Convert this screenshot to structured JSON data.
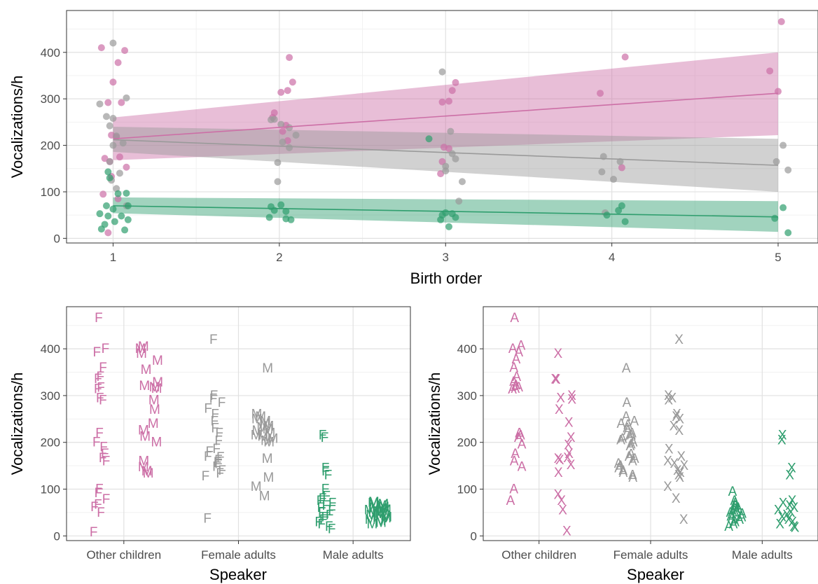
{
  "colors": {
    "other_children": "#cc6fa6",
    "female_adults": "#9a9a9a",
    "male_adults": "#2f9e6e",
    "panel_bg": "#ffffff",
    "grid_major": "#e1e1e1",
    "grid_minor": "#f1f1f1",
    "border": "#333333"
  },
  "chart_data": [
    {
      "type": "scatter",
      "panel": "top",
      "xlabel": "Birth order",
      "ylabel": "Vocalizations/h",
      "xlim": [
        0.7,
        5.2
      ],
      "ylim": [
        -10,
        490
      ],
      "xticks": [
        "1",
        "2",
        "3",
        "4",
        "5"
      ],
      "yticks": [
        "0",
        "100",
        "200",
        "300",
        "400"
      ],
      "grid": true,
      "series": [
        {
          "group": "other_children",
          "points": [
            [
              0.93,
              410
            ],
            [
              1.0,
              336
            ],
            [
              1.03,
              378
            ],
            [
              1.07,
              404
            ],
            [
              0.97,
              292
            ],
            [
              1.05,
              292
            ],
            [
              0.99,
              222
            ],
            [
              1.02,
              218
            ],
            [
              1.04,
              175
            ],
            [
              0.95,
              172
            ],
            [
              0.98,
              165
            ],
            [
              1.08,
              153
            ],
            [
              0.99,
              133
            ],
            [
              0.94,
              95
            ],
            [
              1.03,
              85
            ],
            [
              0.97,
              12
            ],
            [
              1.96,
              260
            ],
            [
              1.97,
              270
            ],
            [
              2.01,
              314
            ],
            [
              2.04,
              243
            ],
            [
              2.06,
              389
            ],
            [
              2.08,
              336
            ],
            [
              2.05,
              318
            ],
            [
              2.02,
              230
            ],
            [
              2.05,
              210
            ],
            [
              2.98,
              293
            ],
            [
              3.02,
              295
            ],
            [
              3.04,
              318
            ],
            [
              3.06,
              335
            ],
            [
              2.99,
              196
            ],
            [
              2.98,
              165
            ],
            [
              3.02,
              193
            ],
            [
              2.97,
              139
            ],
            [
              3.93,
              312
            ],
            [
              4.08,
              390
            ],
            [
              4.06,
              152
            ],
            [
              4.95,
              360
            ],
            [
              5.0,
              316
            ],
            [
              5.02,
              466
            ]
          ],
          "fit": {
            "x": [
              1,
              5
            ],
            "y": [
              214,
              312
            ],
            "ci_lower": [
              168,
              222
            ],
            "ci_upper": [
              260,
              400
            ]
          }
        },
        {
          "group": "female_adults",
          "points": [
            [
              1.0,
              420
            ],
            [
              1.08,
              302
            ],
            [
              0.92,
              289
            ],
            [
              0.96,
              262
            ],
            [
              1.0,
              258
            ],
            [
              0.98,
              242
            ],
            [
              1.02,
              220
            ],
            [
              1.06,
              205
            ],
            [
              1.0,
              200
            ],
            [
              0.98,
              165
            ],
            [
              1.04,
              140
            ],
            [
              0.99,
              125
            ],
            [
              1.02,
              107
            ],
            [
              1.08,
              70
            ],
            [
              1.97,
              256
            ],
            [
              1.95,
              255
            ],
            [
              2.01,
              245
            ],
            [
              2.06,
              238
            ],
            [
              2.1,
              222
            ],
            [
              2.02,
              207
            ],
            [
              2.06,
              195
            ],
            [
              1.99,
              163
            ],
            [
              1.99,
              122
            ],
            [
              2.98,
              358
            ],
            [
              3.03,
              230
            ],
            [
              3.04,
              182
            ],
            [
              3.06,
              171
            ],
            [
              3.0,
              155
            ],
            [
              3.0,
              145
            ],
            [
              3.1,
              122
            ],
            [
              3.08,
              80
            ],
            [
              3.95,
              176
            ],
            [
              4.05,
              165
            ],
            [
              3.94,
              143
            ],
            [
              4.01,
              127
            ],
            [
              3.96,
              55
            ],
            [
              5.03,
              200
            ],
            [
              5.06,
              147
            ],
            [
              4.99,
              165
            ]
          ],
          "fit": {
            "x": [
              1,
              5
            ],
            "y": [
              212,
              157
            ],
            "ci_lower": [
              186,
              100
            ],
            "ci_upper": [
              240,
              214
            ]
          }
        },
        {
          "group": "male_adults",
          "points": [
            [
              0.97,
              143
            ],
            [
              0.98,
              130
            ],
            [
              1.03,
              96
            ],
            [
              1.08,
              97
            ],
            [
              1.09,
              70
            ],
            [
              1.0,
              63
            ],
            [
              0.96,
              70
            ],
            [
              0.92,
              53
            ],
            [
              0.97,
              48
            ],
            [
              1.05,
              48
            ],
            [
              1.09,
              40
            ],
            [
              1.01,
              36
            ],
            [
              0.95,
              30
            ],
            [
              0.93,
              20
            ],
            [
              1.07,
              18
            ],
            [
              1.95,
              68
            ],
            [
              1.97,
              60
            ],
            [
              2.01,
              72
            ],
            [
              2.04,
              58
            ],
            [
              1.94,
              45
            ],
            [
              2.04,
              42
            ],
            [
              2.07,
              40
            ],
            [
              2.9,
              214
            ],
            [
              3.0,
              55
            ],
            [
              3.04,
              53
            ],
            [
              2.98,
              50
            ],
            [
              3.06,
              45
            ],
            [
              2.97,
              40
            ],
            [
              3.02,
              25
            ],
            [
              3.97,
              50
            ],
            [
              4.04,
              60
            ],
            [
              4.06,
              70
            ],
            [
              4.08,
              36
            ],
            [
              5.03,
              66
            ],
            [
              4.98,
              43
            ],
            [
              5.06,
              12
            ]
          ],
          "fit": {
            "x": [
              1,
              5
            ],
            "y": [
              70,
              46
            ],
            "ci_lower": [
              54,
              14
            ],
            "ci_upper": [
              88,
              80
            ]
          }
        }
      ]
    },
    {
      "type": "scatter",
      "panel": "bottom-left",
      "xlabel": "Speaker",
      "ylabel": "Vocalizations/h",
      "categories": [
        "Other children",
        "Female adults",
        "Male adults"
      ],
      "yticks": [
        "0",
        "100",
        "200",
        "300",
        "400"
      ],
      "ylim": [
        -10,
        490
      ],
      "grid": true,
      "marker_labels": [
        "F",
        "M"
      ],
      "series": [
        {
          "category": "Other children",
          "label": "F",
          "group": "other_children",
          "values": [
            466,
            400,
            393,
            360,
            340,
            336,
            317,
            314,
            295,
            290,
            220,
            200,
            190,
            176,
            167,
            160,
            100,
            92,
            78,
            67,
            62,
            50,
            8
          ]
        },
        {
          "category": "Other children",
          "label": "M",
          "group": "other_children",
          "values": [
            405,
            400,
            390,
            375,
            355,
            328,
            321,
            318,
            315,
            290,
            270,
            240,
            226,
            212,
            200,
            160,
            147,
            138,
            134
          ]
        },
        {
          "category": "Female adults",
          "label": "F",
          "group": "female_adults",
          "values": [
            420,
            300,
            293,
            285,
            272,
            260,
            245,
            230,
            220,
            203,
            186,
            180,
            170,
            168,
            162,
            158,
            154,
            148,
            140,
            134,
            128,
            37
          ]
        },
        {
          "category": "Female adults",
          "label": "M",
          "group": "female_adults",
          "values": [
            358,
            260,
            255,
            250,
            245,
            240,
            235,
            232,
            228,
            225,
            220,
            215,
            212,
            208,
            203,
            200,
            165,
            125,
            105,
            85
          ]
        },
        {
          "category": "Male adults",
          "label": "F",
          "group": "male_adults",
          "values": [
            215,
            210,
            145,
            138,
            130,
            100,
            85,
            80,
            75,
            70,
            65,
            60,
            55,
            50,
            45,
            40,
            35,
            30,
            25,
            20,
            15
          ]
        },
        {
          "category": "Male adults",
          "label": "M",
          "group": "male_adults",
          "values": [
            72,
            70,
            68,
            65,
            62,
            60,
            58,
            56,
            55,
            54,
            52,
            50,
            48,
            47,
            45,
            43,
            40,
            38,
            35,
            32,
            28,
            25
          ]
        }
      ]
    },
    {
      "type": "scatter",
      "panel": "bottom-right",
      "xlabel": "Speaker",
      "ylabel": "Vocalizations/h",
      "categories": [
        "Other children",
        "Female adults",
        "Male adults"
      ],
      "yticks": [
        "0",
        "100",
        "200",
        "300",
        "400"
      ],
      "ylim": [
        -10,
        490
      ],
      "grid": true,
      "marker_labels": [
        "A",
        "X"
      ],
      "series": [
        {
          "category": "Other children",
          "label": "A",
          "group": "other_children",
          "values": [
            466,
            407,
            400,
            393,
            378,
            360,
            340,
            330,
            322,
            318,
            315,
            313,
            220,
            215,
            210,
            196,
            176,
            160,
            148,
            100,
            75
          ]
        },
        {
          "category": "Other children",
          "label": "X",
          "group": "other_children",
          "values": [
            390,
            335,
            334,
            300,
            295,
            292,
            270,
            242,
            210,
            194,
            176,
            167,
            165,
            162,
            152,
            135,
            88,
            75,
            55,
            10
          ]
        },
        {
          "category": "Female adults",
          "label": "A",
          "group": "female_adults",
          "values": [
            358,
            285,
            255,
            245,
            240,
            238,
            230,
            225,
            220,
            215,
            212,
            208,
            205,
            200,
            196,
            192,
            175,
            170,
            165,
            160,
            155,
            150,
            145,
            140,
            135,
            130,
            125
          ]
        },
        {
          "category": "Female adults",
          "label": "X",
          "group": "female_adults",
          "values": [
            420,
            300,
            295,
            290,
            260,
            255,
            250,
            235,
            225,
            185,
            170,
            160,
            155,
            150,
            140,
            135,
            130,
            125,
            105,
            80,
            35
          ]
        },
        {
          "category": "Male adults",
          "label": "A",
          "group": "male_adults",
          "values": [
            95,
            75,
            70,
            65,
            60,
            58,
            55,
            52,
            50,
            48,
            45,
            42,
            40,
            38,
            35,
            30,
            25,
            20
          ]
        },
        {
          "category": "Male adults",
          "label": "X",
          "group": "male_adults",
          "values": [
            215,
            205,
            145,
            130,
            75,
            70,
            65,
            60,
            55,
            50,
            45,
            40,
            35,
            30,
            25,
            20,
            18
          ]
        }
      ]
    }
  ]
}
